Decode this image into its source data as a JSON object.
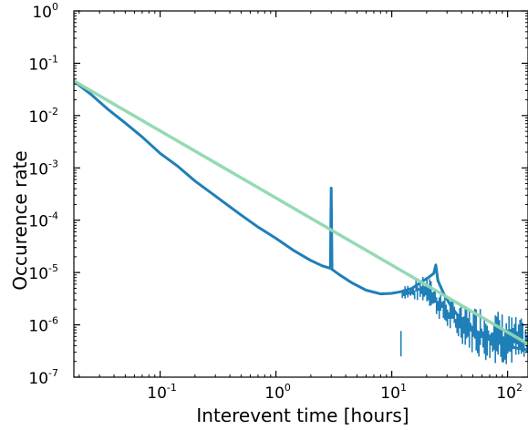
{
  "chart_data": {
    "type": "line",
    "title": "",
    "xlabel": "Interevent time [hours]",
    "ylabel": "Occurence rate",
    "x_scale": "log",
    "y_scale": "log",
    "xlim": [
      0.018,
      150
    ],
    "ylim": [
      1e-07,
      1
    ],
    "grid": false,
    "legend": "none",
    "x_ticks": [
      {
        "base": "10",
        "exp": "-1",
        "value": 0.1
      },
      {
        "base": "10",
        "exp": "0",
        "value": 1
      },
      {
        "base": "10",
        "exp": "1",
        "value": 10
      },
      {
        "base": "10",
        "exp": "2",
        "value": 100
      }
    ],
    "y_ticks": [
      {
        "base": "10",
        "exp": "-7",
        "value": 1e-07
      },
      {
        "base": "10",
        "exp": "-6",
        "value": 1e-06
      },
      {
        "base": "10",
        "exp": "-5",
        "value": 1e-05
      },
      {
        "base": "10",
        "exp": "-4",
        "value": 0.0001
      },
      {
        "base": "10",
        "exp": "-3",
        "value": 0.001
      },
      {
        "base": "10",
        "exp": "-2",
        "value": 0.01
      },
      {
        "base": "10",
        "exp": "-1",
        "value": 0.1
      },
      {
        "base": "10",
        "exp": "0",
        "value": 1
      }
    ],
    "series": [
      {
        "role": "data",
        "color": "#1f7fb8",
        "x": [
          0.018,
          0.025,
          0.035,
          0.05,
          0.07,
          0.1,
          0.14,
          0.2,
          0.3,
          0.5,
          0.7,
          1.0,
          1.4,
          2.0,
          2.5,
          2.95,
          3.0,
          3.05,
          3.5,
          4.5,
          6.0,
          8.0,
          10.0,
          12.0,
          15.0,
          18.0,
          21.0,
          23.0,
          24.0,
          25.0,
          28.0,
          32.0,
          38.0,
          45.0,
          55.0,
          65.0,
          80.0,
          100.0,
          120.0,
          150.0
        ],
        "y": [
          0.045,
          0.026,
          0.0135,
          0.0072,
          0.0039,
          0.0019,
          0.0011,
          0.00056,
          0.00029,
          0.000125,
          7.4e-05,
          4.5e-05,
          2.7e-05,
          1.7e-05,
          1.35e-05,
          1.2e-05,
          0.00041,
          1.15e-05,
          9.2e-06,
          6.4e-06,
          4.6e-06,
          3.9e-06,
          4e-06,
          4.3e-06,
          5e-06,
          6.6e-06,
          8.2e-06,
          9.6e-06,
          1.4e-05,
          7e-06,
          4e-06,
          2.4e-06,
          1.4e-06,
          9e-07,
          6.5e-07,
          5.5e-07,
          4.6e-07,
          4e-07,
          3.6e-07,
          3.3e-07
        ],
        "noise_from_x": 12,
        "noise_lower_y": [
          [
            12,
            3.2e-06
          ],
          [
            20,
            2.6e-06
          ],
          [
            30,
            8e-07
          ],
          [
            45,
            3.5e-07
          ],
          [
            60,
            2e-07
          ],
          [
            150,
            1.5e-07
          ]
        ],
        "noise_upper_y": [
          [
            12,
            5.2e-06
          ],
          [
            20,
            9e-06
          ],
          [
            30,
            3.5e-06
          ],
          [
            45,
            2.2e-06
          ],
          [
            60,
            2.5e-06
          ],
          [
            150,
            1.2e-06
          ]
        ]
      },
      {
        "role": "fit",
        "color": "#8fd8b0",
        "x": [
          0.018,
          150
        ],
        "y": [
          0.046,
          4.3e-07
        ]
      }
    ]
  }
}
